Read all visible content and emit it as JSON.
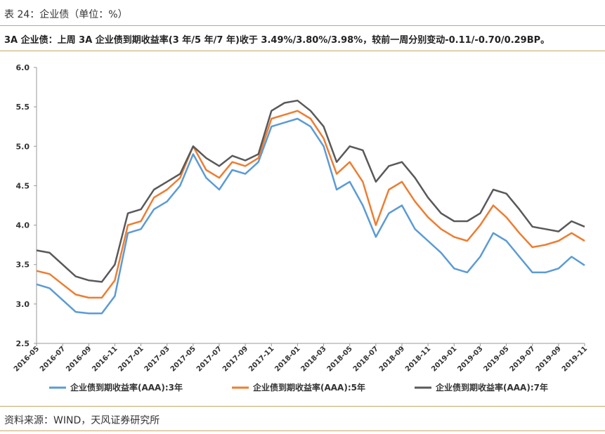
{
  "header": {
    "table_title": "表 24：企业债（单位：%）",
    "summary": "3A 企业债：上周 3A 企业债到期收益率(3 年/5 年/7 年)收于 3.49%/3.80%/3.98%，较前一周分别变动-0.11/-0.70/0.29BP。"
  },
  "footer": {
    "source": "资料来源：WIND，天风证券研究所"
  },
  "chart_data": {
    "type": "line",
    "title": "",
    "xlabel": "",
    "ylabel": "",
    "ylim": [
      2.5,
      6.0
    ],
    "yticks": [
      "2.5",
      "3.0",
      "3.5",
      "4.0",
      "4.5",
      "5.0",
      "5.5",
      "6.0"
    ],
    "x_ticks": [
      "2016-05",
      "2016-07",
      "2016-09",
      "2016-11",
      "2017-01",
      "2017-03",
      "2017-05",
      "2017-07",
      "2017-09",
      "2017-11",
      "2018-01",
      "2018-03",
      "2018-05",
      "2018-07",
      "2018-09",
      "2018-11",
      "2019-01",
      "2019-03",
      "2019-05",
      "2019-07",
      "2019-09",
      "2019-11"
    ],
    "x_range": [
      "2016-05",
      "2019-11"
    ],
    "grid": false,
    "legend_position": "bottom",
    "colors": {
      "3y": "#5b9bd5",
      "5y": "#ed7d31",
      "7y": "#595959",
      "rule": "#c9a66b"
    },
    "series": [
      {
        "name": "企业债到期收益率(AAA):3年",
        "x": [
          "2016-05",
          "2016-06",
          "2016-07",
          "2016-08",
          "2016-09",
          "2016-10",
          "2016-11",
          "2016-12",
          "2017-01",
          "2017-02",
          "2017-03",
          "2017-04",
          "2017-05",
          "2017-06",
          "2017-07",
          "2017-08",
          "2017-09",
          "2017-10",
          "2017-11",
          "2017-12",
          "2018-01",
          "2018-02",
          "2018-03",
          "2018-04",
          "2018-05",
          "2018-06",
          "2018-07",
          "2018-08",
          "2018-09",
          "2018-10",
          "2018-11",
          "2018-12",
          "2019-01",
          "2019-02",
          "2019-03",
          "2019-04",
          "2019-05",
          "2019-06",
          "2019-07",
          "2019-08",
          "2019-09",
          "2019-10",
          "2019-11"
        ],
        "values": [
          3.25,
          3.2,
          3.05,
          2.9,
          2.88,
          2.88,
          3.1,
          3.9,
          3.95,
          4.2,
          4.3,
          4.5,
          4.9,
          4.6,
          4.45,
          4.7,
          4.65,
          4.8,
          5.25,
          5.3,
          5.35,
          5.25,
          5.0,
          4.45,
          4.55,
          4.25,
          3.85,
          4.15,
          4.25,
          3.95,
          3.8,
          3.65,
          3.45,
          3.4,
          3.6,
          3.9,
          3.8,
          3.6,
          3.4,
          3.4,
          3.45,
          3.6,
          3.49
        ]
      },
      {
        "name": "企业债到期收益率(AAA):5年",
        "x": [
          "2016-05",
          "2016-06",
          "2016-07",
          "2016-08",
          "2016-09",
          "2016-10",
          "2016-11",
          "2016-12",
          "2017-01",
          "2017-02",
          "2017-03",
          "2017-04",
          "2017-05",
          "2017-06",
          "2017-07",
          "2017-08",
          "2017-09",
          "2017-10",
          "2017-11",
          "2017-12",
          "2018-01",
          "2018-02",
          "2018-03",
          "2018-04",
          "2018-05",
          "2018-06",
          "2018-07",
          "2018-08",
          "2018-09",
          "2018-10",
          "2018-11",
          "2018-12",
          "2019-01",
          "2019-02",
          "2019-03",
          "2019-04",
          "2019-05",
          "2019-06",
          "2019-07",
          "2019-08",
          "2019-09",
          "2019-10",
          "2019-11"
        ],
        "values": [
          3.42,
          3.38,
          3.25,
          3.12,
          3.08,
          3.08,
          3.3,
          4.0,
          4.05,
          4.35,
          4.45,
          4.6,
          5.0,
          4.7,
          4.6,
          4.8,
          4.75,
          4.85,
          5.35,
          5.4,
          5.45,
          5.35,
          5.1,
          4.65,
          4.8,
          4.55,
          4.0,
          4.45,
          4.55,
          4.3,
          4.1,
          3.95,
          3.85,
          3.8,
          4.0,
          4.25,
          4.1,
          3.9,
          3.72,
          3.75,
          3.8,
          3.9,
          3.8
        ]
      },
      {
        "name": "企业债到期收益率(AAA):7年",
        "x": [
          "2016-05",
          "2016-06",
          "2016-07",
          "2016-08",
          "2016-09",
          "2016-10",
          "2016-11",
          "2016-12",
          "2017-01",
          "2017-02",
          "2017-03",
          "2017-04",
          "2017-05",
          "2017-06",
          "2017-07",
          "2017-08",
          "2017-09",
          "2017-10",
          "2017-11",
          "2017-12",
          "2018-01",
          "2018-02",
          "2018-03",
          "2018-04",
          "2018-05",
          "2018-06",
          "2018-07",
          "2018-08",
          "2018-09",
          "2018-10",
          "2018-11",
          "2018-12",
          "2019-01",
          "2019-02",
          "2019-03",
          "2019-04",
          "2019-05",
          "2019-06",
          "2019-07",
          "2019-08",
          "2019-09",
          "2019-10",
          "2019-11"
        ],
        "values": [
          3.68,
          3.65,
          3.5,
          3.35,
          3.3,
          3.28,
          3.5,
          4.15,
          4.2,
          4.45,
          4.55,
          4.65,
          5.0,
          4.85,
          4.75,
          4.88,
          4.82,
          4.9,
          5.45,
          5.55,
          5.58,
          5.45,
          5.25,
          4.8,
          5.0,
          4.95,
          4.55,
          4.75,
          4.8,
          4.6,
          4.35,
          4.15,
          4.05,
          4.05,
          4.15,
          4.45,
          4.4,
          4.2,
          3.98,
          3.95,
          3.92,
          4.05,
          3.98
        ]
      }
    ]
  }
}
